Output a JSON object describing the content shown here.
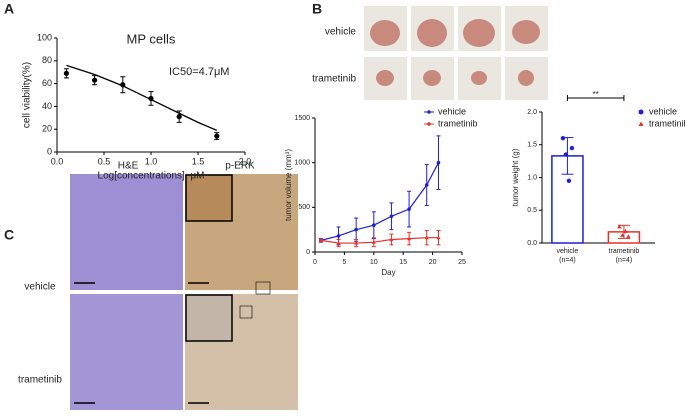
{
  "panels": [
    "A",
    "B",
    "C"
  ],
  "photo_labels": [
    "vehicle",
    "trametinib"
  ],
  "histology": {
    "columns": [
      "H&E",
      "p-ERK"
    ],
    "rows": [
      "vehicle",
      "trametinib"
    ]
  },
  "chart_data": [
    {
      "type": "scatter",
      "title": "MP cells",
      "annotation": "IC50=4.7μM",
      "x_label": "Log[concentrations], μM",
      "y_label": "cell viability(%)",
      "x": [
        0.1,
        0.4,
        0.7,
        1.0,
        1.3,
        1.7
      ],
      "values": [
        69,
        63,
        59,
        47,
        31,
        14
      ],
      "errors": [
        4,
        4,
        7,
        6,
        5,
        3
      ],
      "color": "#000000",
      "fit": {
        "x": [
          0.1,
          0.4,
          0.7,
          1.0,
          1.3,
          1.5,
          1.7
        ],
        "values": [
          76,
          68,
          58,
          46,
          34,
          26,
          19
        ]
      },
      "xlim": [
        0,
        2
      ],
      "xticks": [
        {
          "value": 0,
          "label": "0.0"
        },
        0.5,
        {
          "value": 1,
          "label": "1.0"
        },
        1.5,
        {
          "value": 2,
          "label": "2.0"
        }
      ],
      "ylim": [
        0,
        100
      ],
      "yticks": [
        0,
        20,
        40,
        60,
        80,
        100
      ]
    },
    {
      "type": "line",
      "x_label": "Day",
      "y_label": "tumor volume (mm³)",
      "x": [
        1,
        4,
        7,
        10,
        13,
        16,
        19,
        21
      ],
      "series": [
        {
          "name": "vehicle",
          "color": "#1f1fd6",
          "values": [
            130,
            180,
            250,
            300,
            400,
            480,
            750,
            1000
          ],
          "errors": [
            20,
            100,
            130,
            150,
            150,
            200,
            230,
            300
          ]
        },
        {
          "name": "trametinib",
          "color": "#e8302a",
          "values": [
            130,
            100,
            100,
            110,
            140,
            150,
            160,
            160
          ],
          "errors": [
            10,
            40,
            40,
            50,
            60,
            70,
            80,
            80
          ]
        }
      ],
      "xlim": [
        0,
        25
      ],
      "xticks": [
        0,
        5,
        10,
        15,
        20,
        25
      ],
      "ylim": [
        0,
        1500
      ],
      "yticks": [
        0,
        500,
        1000,
        1500
      ],
      "legend": "upper right"
    },
    {
      "type": "bar",
      "y_label": "tumor weight (g)",
      "categories": [
        "vehicle",
        "trametinib"
      ],
      "group_sizes": [
        "(n=4)",
        "(n=4)"
      ],
      "series": [
        {
          "name": "vehicle",
          "color": "#1f1fd6",
          "marker": "circle",
          "value": 1.33,
          "error": 0.28,
          "points": [
            1.6,
            1.35,
            0.95,
            1.45
          ]
        },
        {
          "name": "trametinib",
          "color": "#e8302a",
          "marker": "triangle",
          "value": 0.17,
          "error": 0.1,
          "points": [
            0.25,
            0.12,
            0.18,
            0.1
          ]
        }
      ],
      "significance": "**",
      "ylim": [
        0,
        2
      ],
      "yticks": [
        {
          "value": 0,
          "label": "0.0"
        },
        0.5,
        {
          "value": 1,
          "label": "1.0"
        },
        1.5,
        {
          "value": 2,
          "label": "2.0"
        }
      ],
      "legend": "upper right"
    }
  ]
}
